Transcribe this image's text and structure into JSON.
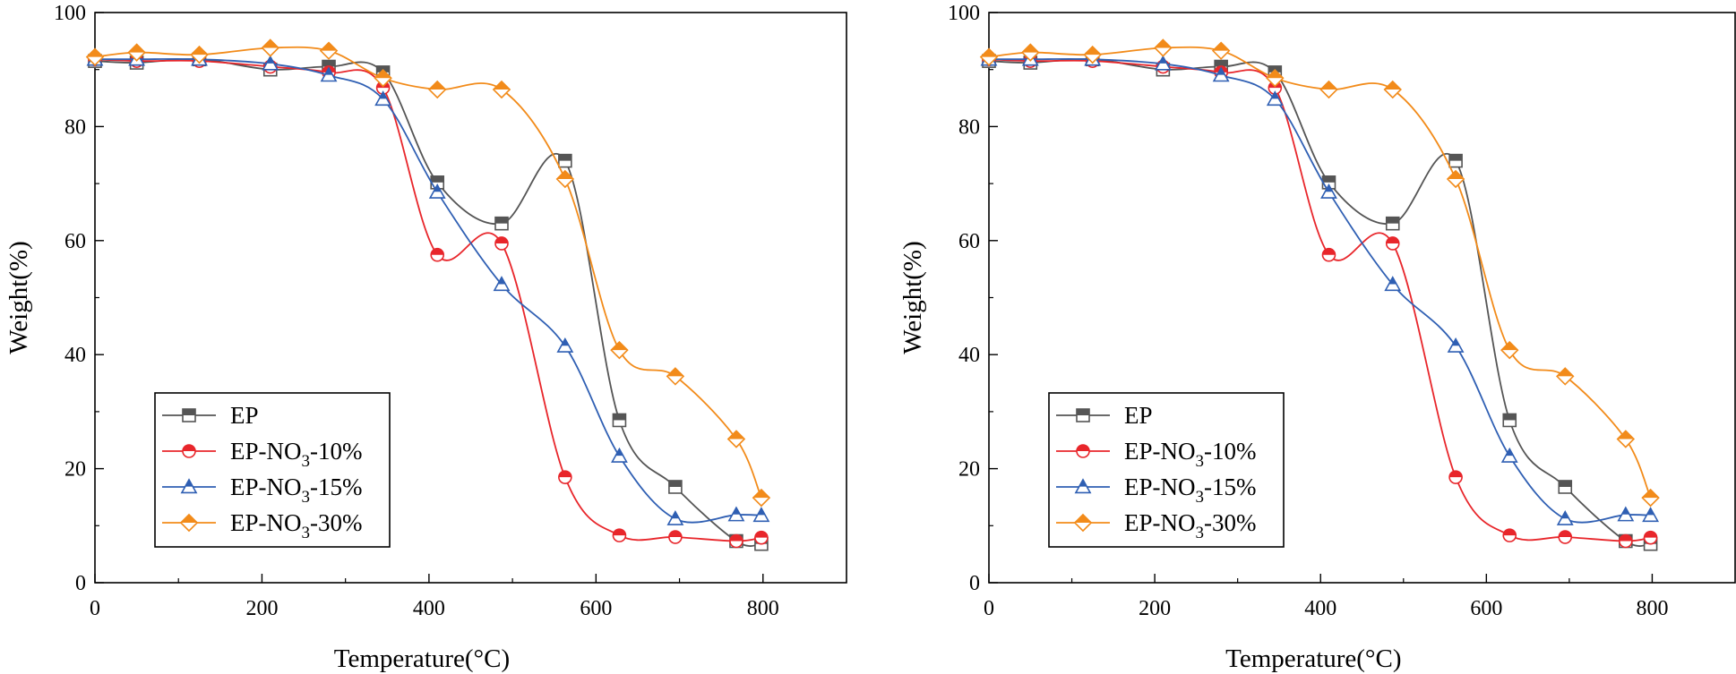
{
  "chart_data": [
    {
      "type": "line",
      "xlabel": "Temperature(°C)",
      "ylabel": "Weight(%)",
      "xlim": [
        0,
        900
      ],
      "ylim": [
        0,
        100
      ],
      "xticks": [
        0,
        200,
        400,
        600,
        800
      ],
      "yticks": [
        0,
        20,
        40,
        60,
        80,
        100
      ],
      "legend_position": "bottom-left",
      "series": [
        {
          "name": "EP",
          "label_parts": [
            "EP",
            "",
            ""
          ],
          "color": "#555555",
          "marker": "square",
          "x": [
            0,
            50,
            125,
            210,
            280,
            345,
            410,
            487,
            563,
            628,
            695,
            768,
            798
          ],
          "y": [
            91.5,
            91.2,
            91.8,
            90.0,
            90.5,
            89.5,
            70.2,
            63.0,
            74.0,
            28.5,
            16.8,
            7.3,
            6.8
          ]
        },
        {
          "name": "EP-NO3-10%",
          "label_parts": [
            "EP-NO",
            "3",
            "-10%"
          ],
          "color": "#e8262b",
          "marker": "circle",
          "x": [
            0,
            50,
            125,
            210,
            280,
            345,
            410,
            487,
            563,
            628,
            695,
            768,
            798
          ],
          "y": [
            91.8,
            91.5,
            91.5,
            90.5,
            89.5,
            86.8,
            57.5,
            59.5,
            18.5,
            8.3,
            8.0,
            7.3,
            7.9
          ]
        },
        {
          "name": "EP-NO3-15%",
          "label_parts": [
            "EP-NO",
            "3",
            "-15%"
          ],
          "color": "#2f5fb3",
          "marker": "triangle",
          "x": [
            0,
            50,
            125,
            210,
            280,
            345,
            410,
            487,
            563,
            628,
            695,
            768,
            798
          ],
          "y": [
            91.8,
            91.8,
            91.8,
            91.0,
            89.0,
            84.8,
            68.5,
            52.3,
            41.5,
            22.2,
            11.2,
            11.9,
            11.8
          ]
        },
        {
          "name": "EP-NO3-30%",
          "label_parts": [
            "EP-NO",
            "3",
            "-30%"
          ],
          "color": "#f28b1a",
          "marker": "diamond",
          "x": [
            0,
            50,
            125,
            210,
            280,
            345,
            410,
            487,
            563,
            628,
            695,
            768,
            798
          ],
          "y": [
            92.2,
            93.0,
            92.6,
            93.8,
            93.3,
            88.5,
            86.5,
            86.5,
            70.8,
            40.8,
            36.2,
            25.2,
            14.9
          ]
        }
      ]
    },
    {
      "type": "line",
      "xlabel": "Temperature(°C)",
      "ylabel": "Weight(%)",
      "xlim": [
        0,
        900
      ],
      "ylim": [
        0,
        100
      ],
      "xticks": [
        0,
        200,
        400,
        600,
        800
      ],
      "yticks": [
        0,
        20,
        40,
        60,
        80,
        100
      ],
      "legend_position": "bottom-left",
      "series": [
        {
          "name": "EP",
          "label_parts": [
            "EP",
            "",
            ""
          ],
          "color": "#555555",
          "marker": "square",
          "x": [
            0,
            50,
            125,
            210,
            280,
            345,
            410,
            487,
            563,
            628,
            695,
            768,
            798
          ],
          "y": [
            91.5,
            91.2,
            91.8,
            90.0,
            90.5,
            89.5,
            70.2,
            63.0,
            74.0,
            28.5,
            16.8,
            7.3,
            6.8
          ]
        },
        {
          "name": "EP-NO3-10%",
          "label_parts": [
            "EP-NO",
            "3",
            "-10%"
          ],
          "color": "#e8262b",
          "marker": "circle",
          "x": [
            0,
            50,
            125,
            210,
            280,
            345,
            410,
            487,
            563,
            628,
            695,
            768,
            798
          ],
          "y": [
            91.8,
            91.5,
            91.5,
            90.5,
            89.5,
            86.8,
            57.5,
            59.5,
            18.5,
            8.3,
            8.0,
            7.3,
            7.9
          ]
        },
        {
          "name": "EP-NO3-15%",
          "label_parts": [
            "EP-NO",
            "3",
            "-15%"
          ],
          "color": "#2f5fb3",
          "marker": "triangle",
          "x": [
            0,
            50,
            125,
            210,
            280,
            345,
            410,
            487,
            563,
            628,
            695,
            768,
            798
          ],
          "y": [
            91.8,
            91.8,
            91.8,
            91.0,
            89.0,
            84.8,
            68.5,
            52.3,
            41.5,
            22.2,
            11.2,
            11.9,
            11.8
          ]
        },
        {
          "name": "EP-NO3-30%",
          "label_parts": [
            "EP-NO",
            "3",
            "-30%"
          ],
          "color": "#f28b1a",
          "marker": "diamond",
          "x": [
            0,
            50,
            125,
            210,
            280,
            345,
            410,
            487,
            563,
            628,
            695,
            768,
            798
          ],
          "y": [
            92.2,
            93.0,
            92.6,
            93.8,
            93.3,
            88.5,
            86.5,
            86.5,
            70.8,
            40.8,
            36.2,
            25.2,
            14.9
          ]
        }
      ]
    }
  ]
}
